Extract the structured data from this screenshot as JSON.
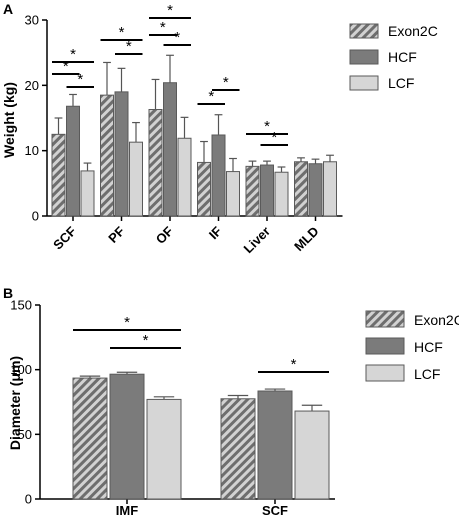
{
  "chart_data": [
    {
      "type": "bar",
      "panel_label": "A",
      "ylabel": "Weight (kg)",
      "ylim": [
        0,
        30
      ],
      "yticks": [
        "0",
        "10",
        "20",
        "30"
      ],
      "categories": [
        "SCF",
        "PF",
        "OF",
        "IF",
        "Liver",
        "MLD"
      ],
      "legend_position": "right",
      "series": [
        {
          "name": "Exon2C",
          "values": [
            12.5,
            18.5,
            16.3,
            8.2,
            7.6,
            8.3
          ],
          "errors": [
            2.5,
            5.0,
            4.6,
            3.2,
            0.8,
            0.6
          ],
          "color": "#8a8a8a",
          "pattern": "hatch"
        },
        {
          "name": "HCF",
          "values": [
            16.8,
            19.0,
            20.4,
            12.4,
            7.8,
            8.0
          ],
          "errors": [
            1.8,
            3.6,
            4.2,
            3.1,
            0.6,
            0.7
          ],
          "color": "#7b7b7b",
          "pattern": "solid"
        },
        {
          "name": "LCF",
          "values": [
            6.9,
            11.3,
            11.9,
            6.8,
            6.7,
            8.3
          ],
          "errors": [
            1.2,
            3.0,
            3.2,
            2.0,
            0.8,
            1.0
          ],
          "color": "#d6d6d6",
          "pattern": "solid"
        }
      ],
      "significance": [
        {
          "category": "SCF",
          "from": 0,
          "to": 2,
          "label": "*"
        },
        {
          "category": "SCF",
          "from": 0,
          "to": 1,
          "label": "*"
        },
        {
          "category": "SCF",
          "from": 1,
          "to": 2,
          "label": "*"
        },
        {
          "category": "PF",
          "from": 0,
          "to": 2,
          "label": "*"
        },
        {
          "category": "PF",
          "from": 1,
          "to": 2,
          "label": "*"
        },
        {
          "category": "OF",
          "from": 0,
          "to": 2,
          "label": "*"
        },
        {
          "category": "OF",
          "from": 0,
          "to": 1,
          "label": "*"
        },
        {
          "category": "OF",
          "from": 1,
          "to": 2,
          "label": "*"
        },
        {
          "category": "IF",
          "from": 0,
          "to": 1,
          "label": "*"
        },
        {
          "category": "IF",
          "from": 1,
          "to": 2,
          "label": "*"
        },
        {
          "category": "Liver",
          "from": 0,
          "to": 2,
          "label": "*"
        },
        {
          "category": "Liver",
          "from": 1,
          "to": 2,
          "label": "*"
        }
      ]
    },
    {
      "type": "bar",
      "panel_label": "B",
      "ylabel": "Diameter (μm)",
      "ylim": [
        0,
        150
      ],
      "yticks": [
        "0",
        "50",
        "100",
        "150"
      ],
      "categories": [
        "IMF",
        "SCF"
      ],
      "legend_position": "right",
      "series": [
        {
          "name": "Exon2C",
          "values": [
            93.5,
            77.5
          ],
          "errors": [
            1.5,
            2.5
          ],
          "color": "#8a8a8a",
          "pattern": "hatch"
        },
        {
          "name": "HCF",
          "values": [
            96.5,
            83.5
          ],
          "errors": [
            1.5,
            1.5
          ],
          "color": "#7b7b7b",
          "pattern": "solid"
        },
        {
          "name": "LCF",
          "values": [
            77.0,
            68.0
          ],
          "errors": [
            2.0,
            4.5
          ],
          "color": "#d6d6d6",
          "pattern": "solid"
        }
      ],
      "significance": [
        {
          "category": "IMF",
          "from": 0,
          "to": 2,
          "label": "*"
        },
        {
          "category": "IMF",
          "from": 1,
          "to": 2,
          "label": "*"
        },
        {
          "category": "SCF",
          "from": 1,
          "to": 2,
          "label": "*"
        }
      ]
    }
  ]
}
